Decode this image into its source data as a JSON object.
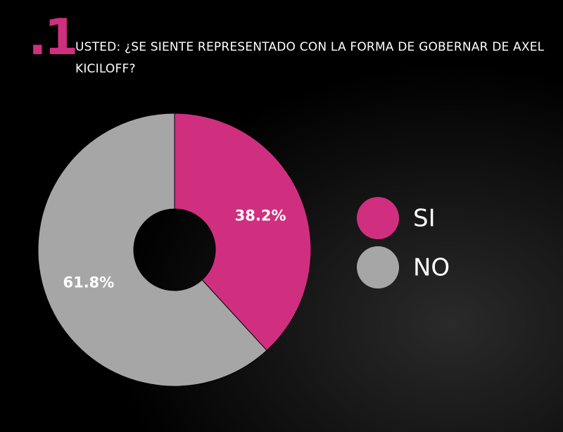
{
  "number": ".1",
  "chart_data": {
    "type": "pie",
    "title": "USTED: ¿SE SIENTE REPRESENTADO CON LA FORMA DE GOBERNAR DE AXEL KICILOFF?",
    "categories": [
      "SI",
      "NO"
    ],
    "values": [
      38.2,
      61.8
    ],
    "value_labels": [
      "38.2%",
      "61.8%"
    ],
    "colors": [
      "#d02f80",
      "#a6a6a6"
    ],
    "donut": true,
    "legend": "right"
  }
}
